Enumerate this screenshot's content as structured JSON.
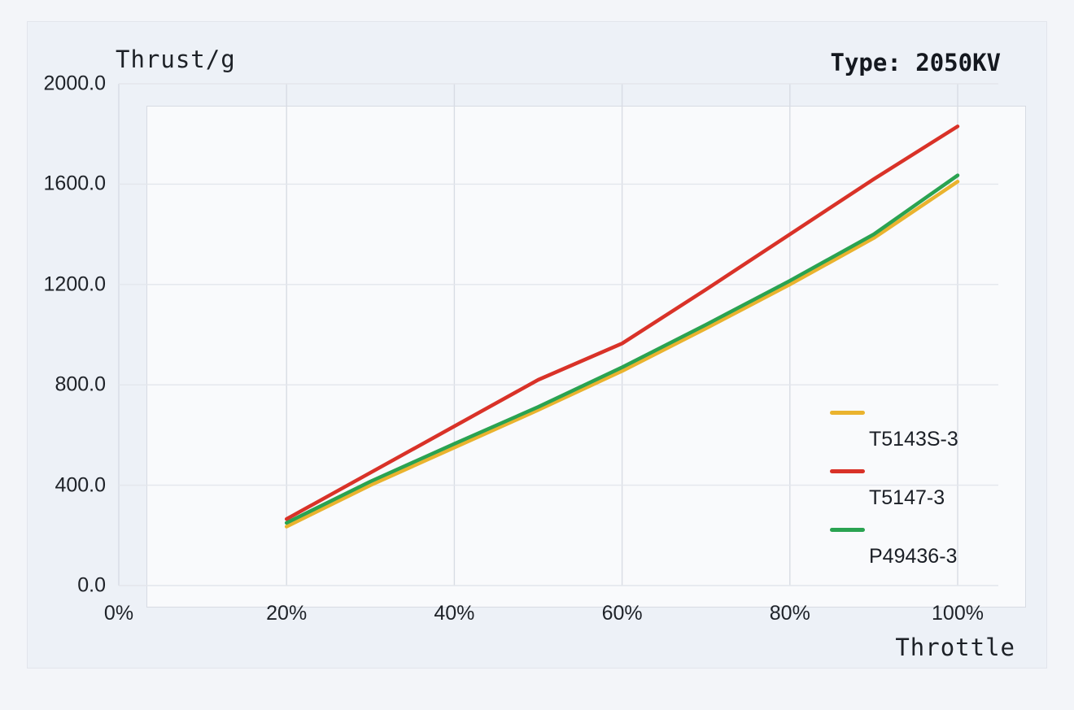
{
  "titles": {
    "y_axis_title": "Thrust/g",
    "x_axis_title": "Throttle",
    "type_label": "Type: 2050KV"
  },
  "chart_data": {
    "type": "line",
    "title": "Type: 2050KV",
    "xlabel": "Throttle",
    "ylabel": "Thrust/g",
    "xlim": [
      0,
      100
    ],
    "ylim": [
      0,
      2000
    ],
    "grid": true,
    "legend_position": "inside-right",
    "x_tick_labels": [
      "0%",
      "20%",
      "40%",
      "60%",
      "80%",
      "100%"
    ],
    "x_tick_values": [
      0,
      20,
      40,
      60,
      80,
      100
    ],
    "y_tick_labels": [
      "0.0",
      "400.0",
      "800.0",
      "1200.0",
      "1600.0",
      "2000.0"
    ],
    "y_tick_values": [
      0,
      400,
      800,
      1200,
      1600,
      2000
    ],
    "x": [
      20,
      30,
      40,
      50,
      60,
      70,
      80,
      90,
      100
    ],
    "x_unit": "percent throttle",
    "y_unit": "grams",
    "series": [
      {
        "name": "T5143S-3",
        "color": "#eab32e",
        "values": [
          235,
          400,
          550,
          700,
          855,
          1025,
          1200,
          1385,
          1610
        ]
      },
      {
        "name": "P49436-3",
        "color": "#2aa351",
        "values": [
          250,
          415,
          565,
          712,
          870,
          1040,
          1215,
          1400,
          1635
        ]
      },
      {
        "name": "T5147-3",
        "color": "#d93228",
        "values": [
          265,
          450,
          635,
          820,
          965,
          1180,
          1400,
          1620,
          1830
        ]
      }
    ]
  },
  "legend": {
    "items": [
      {
        "label": "T5143S-3",
        "color": "#eab32e"
      },
      {
        "label": "T5147-3",
        "color": "#d93228"
      },
      {
        "label": "P49436-3",
        "color": "#2aa351"
      }
    ]
  },
  "colors": {
    "page_bg": "#f3f5f9",
    "panel_bg": "#edf1f7",
    "plot_bg": "#f9fafc",
    "grid_vertical": "#d8dce4",
    "grid_horizontal": "#e3e6ec",
    "text": "#1e2228"
  }
}
